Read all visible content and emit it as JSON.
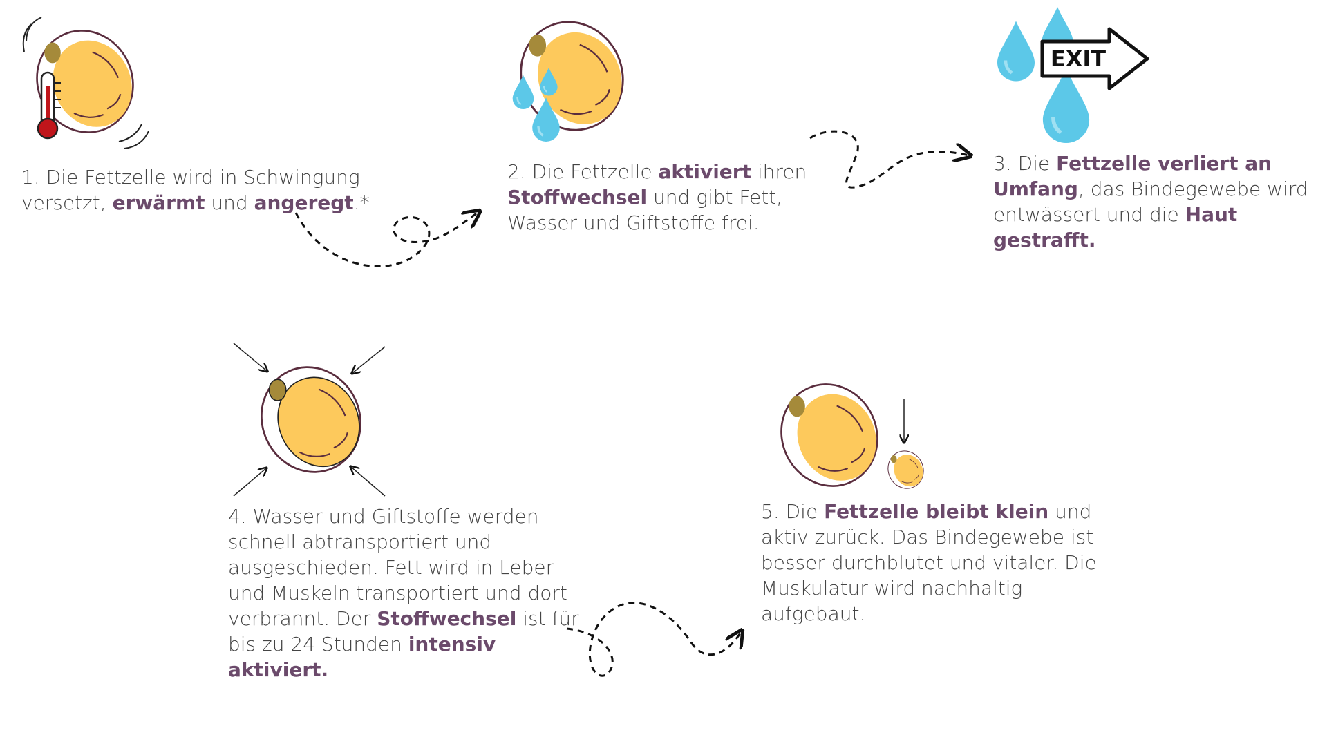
{
  "steps": [
    {
      "parts": [
        {
          "text": "1. Die Fettzelle wird in Schwingung versetzt, ",
          "bold": false
        },
        {
          "text": "erwärmt",
          "bold": true
        },
        {
          "text": " und ",
          "bold": false
        },
        {
          "text": "angeregt",
          "bold": true
        },
        {
          "text": ".*",
          "bold": false
        }
      ]
    },
    {
      "parts": [
        {
          "text": "2. Die Fettzelle ",
          "bold": false
        },
        {
          "text": "aktiviert",
          "bold": true
        },
        {
          "text": " ihren ",
          "bold": false
        },
        {
          "text": "Stoffwechsel",
          "bold": true
        },
        {
          "text": " und gibt Fett, Wasser und Giftstoffe frei.",
          "bold": false
        }
      ]
    },
    {
      "parts": [
        {
          "text": "3. Die ",
          "bold": false
        },
        {
          "text": "Fettzelle verliert an Umfang",
          "bold": true
        },
        {
          "text": ", das Bindegewebe wird entwässert und die ",
          "bold": false
        },
        {
          "text": "Haut gestrafft.",
          "bold": true
        }
      ]
    },
    {
      "parts": [
        {
          "text": "4. Wasser und Giftstoffe werden schnell abtransportiert und ausgeschieden. Fett wird in Leber und Muskeln transportiert und dort verbrannt. Der ",
          "bold": false
        },
        {
          "text": "Stoffwechsel",
          "bold": true
        },
        {
          "text": " ist für bis zu 24 Stunden ",
          "bold": false
        },
        {
          "text": "intensiv aktiviert.",
          "bold": true
        }
      ]
    },
    {
      "parts": [
        {
          "text": "5. Die ",
          "bold": false
        },
        {
          "text": "Fettzelle bleibt klein",
          "bold": true
        },
        {
          "text": " und aktiv zurück. Das Bindegewebe ist besser durchblutet und vitaler. Die Muskulatur wird nachhaltig aufgebaut.",
          "bold": false
        }
      ]
    }
  ],
  "exit_sign": "EXIT"
}
